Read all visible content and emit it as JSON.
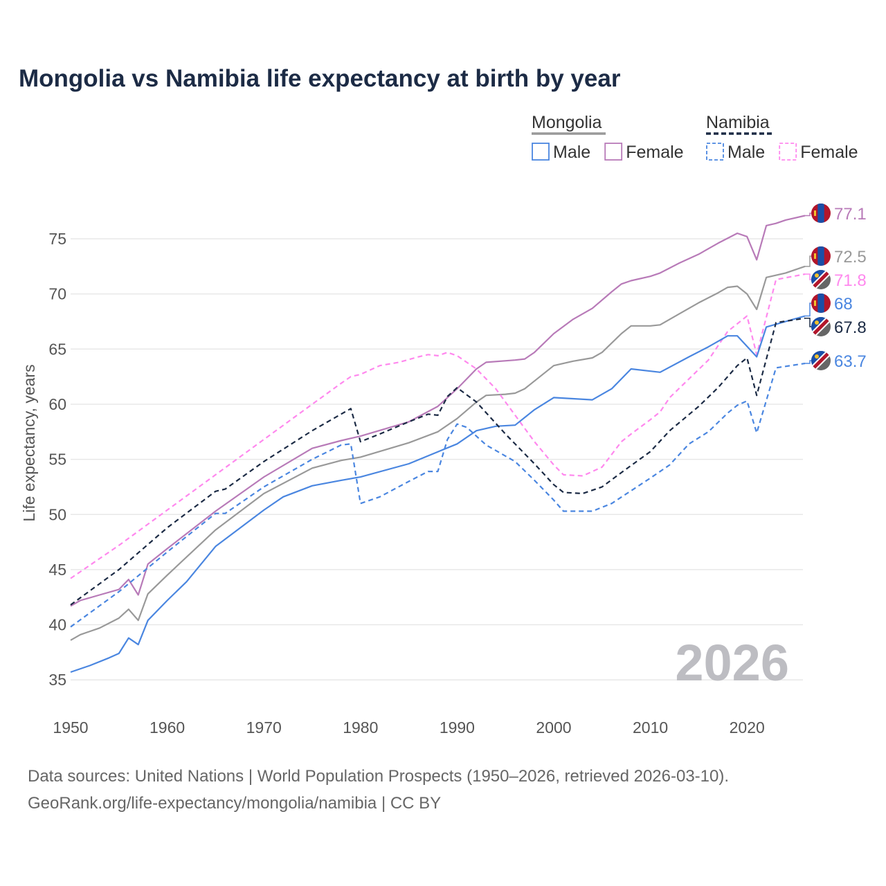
{
  "chart_data": {
    "type": "line",
    "title": "Mongolia vs Namibia life expectancy at birth by year",
    "xlabel": "",
    "ylabel": "Life expectancy, years",
    "xlim": [
      1950,
      2026
    ],
    "ylim": [
      33,
      79
    ],
    "x_ticks": [
      1950,
      1960,
      1970,
      1980,
      1990,
      2000,
      2010,
      2020
    ],
    "y_ticks": [
      35,
      40,
      45,
      50,
      55,
      60,
      65,
      70,
      75
    ],
    "grid": true,
    "watermark_year": "2026",
    "legend": {
      "placement": "top-right",
      "groups": [
        {
          "name": "Mongolia",
          "color": "#999999",
          "style": "solid",
          "items": [
            {
              "label": "Male",
              "color": "#4a86e0"
            },
            {
              "label": "Female",
              "color": "#b87ab8"
            }
          ]
        },
        {
          "name": "Namibia",
          "color": "#1c2b45",
          "style": "dashed",
          "items": [
            {
              "label": "Male",
              "color": "#4a86e0"
            },
            {
              "label": "Female",
              "color": "#ff88ee"
            }
          ]
        }
      ]
    },
    "series": [
      {
        "name": "Mongolia Female",
        "country": "mongolia",
        "color": "#b87ab8",
        "dashed": false,
        "end_label": "77.1",
        "x": [
          1950,
          1951,
          1953,
          1955,
          1956,
          1957,
          1958,
          1960,
          1965,
          1970,
          1975,
          1978,
          1980,
          1985,
          1988,
          1990,
          1992,
          1993,
          1996,
          1997,
          1998,
          2000,
          2002,
          2004,
          2006,
          2007,
          2008,
          2010,
          2011,
          2013,
          2015,
          2017,
          2019,
          2020,
          2021,
          2022,
          2023,
          2024,
          2026
        ],
        "y": [
          41.7,
          42.2,
          42.7,
          43.2,
          44.1,
          42.7,
          45.5,
          46.9,
          50.3,
          53.4,
          56.0,
          56.7,
          57.1,
          58.4,
          59.8,
          61.4,
          63.2,
          63.8,
          64.0,
          64.1,
          64.7,
          66.4,
          67.7,
          68.7,
          70.2,
          70.9,
          71.2,
          71.6,
          71.9,
          72.8,
          73.6,
          74.6,
          75.5,
          75.2,
          73.1,
          76.2,
          76.4,
          76.7,
          77.1
        ]
      },
      {
        "name": "Mongolia Total",
        "country": "mongolia",
        "color": "#999999",
        "dashed": false,
        "end_label": "72.5",
        "x": [
          1950,
          1951,
          1953,
          1955,
          1956,
          1957,
          1958,
          1960,
          1965,
          1970,
          1975,
          1978,
          1980,
          1985,
          1988,
          1990,
          1992,
          1993,
          1995,
          1996,
          1997,
          2000,
          2002,
          2004,
          2005,
          2007,
          2008,
          2010,
          2011,
          2013,
          2015,
          2017,
          2018,
          2019,
          2020,
          2021,
          2022,
          2024,
          2026
        ],
        "y": [
          38.6,
          39.1,
          39.7,
          40.6,
          41.4,
          40.4,
          42.8,
          44.5,
          48.6,
          51.9,
          54.2,
          54.9,
          55.2,
          56.5,
          57.5,
          58.7,
          60.2,
          60.8,
          60.9,
          61.0,
          61.4,
          63.5,
          63.9,
          64.2,
          64.7,
          66.4,
          67.1,
          67.1,
          67.2,
          68.2,
          69.2,
          70.1,
          70.6,
          70.7,
          70.0,
          68.6,
          71.5,
          71.9,
          72.5
        ]
      },
      {
        "name": "Namibia Female",
        "country": "namibia",
        "color": "#ff88ee",
        "dashed": true,
        "end_label": "71.8",
        "x": [
          1950,
          1955,
          1960,
          1965,
          1970,
          1975,
          1978,
          1979,
          1980,
          1982,
          1984,
          1986,
          1987,
          1988,
          1989,
          1990,
          1992,
          1994,
          1996,
          1998,
          2000,
          2001,
          2003,
          2005,
          2007,
          2008,
          2010,
          2011,
          2012,
          2014,
          2016,
          2018,
          2020,
          2021,
          2023,
          2026
        ],
        "y": [
          44.2,
          47.2,
          50.4,
          53.6,
          56.8,
          60.0,
          61.9,
          62.5,
          62.7,
          63.5,
          63.8,
          64.3,
          64.5,
          64.4,
          64.7,
          64.4,
          63.2,
          61.4,
          59.0,
          56.6,
          54.5,
          53.6,
          53.5,
          54.3,
          56.6,
          57.3,
          58.6,
          59.3,
          60.6,
          62.3,
          64.0,
          66.6,
          68.0,
          64.5,
          71.3,
          71.8
        ]
      },
      {
        "name": "Mongolia Male",
        "country": "mongolia",
        "color": "#4a86e0",
        "dashed": false,
        "end_label": "68",
        "x": [
          1950,
          1952,
          1954,
          1955,
          1956,
          1957,
          1958,
          1960,
          1962,
          1965,
          1970,
          1972,
          1975,
          1978,
          1980,
          1985,
          1990,
          1992,
          1994,
          1996,
          1998,
          2000,
          2004,
          2006,
          2008,
          2010,
          2011,
          2014,
          2016,
          2018,
          2019,
          2021,
          2022,
          2026
        ],
        "y": [
          35.7,
          36.3,
          37.0,
          37.4,
          38.8,
          38.2,
          40.4,
          42.2,
          43.9,
          47.1,
          50.4,
          51.6,
          52.6,
          53.1,
          53.4,
          54.6,
          56.4,
          57.6,
          58.0,
          58.1,
          59.5,
          60.6,
          60.4,
          61.4,
          63.2,
          63.0,
          62.9,
          64.3,
          65.2,
          66.2,
          66.2,
          64.3,
          67.0,
          68.0
        ]
      },
      {
        "name": "Namibia Total",
        "country": "namibia",
        "color": "#1c2b45",
        "dashed": true,
        "end_label": "67.8",
        "x": [
          1950,
          1955,
          1960,
          1965,
          1966,
          1970,
          1975,
          1979,
          1980,
          1982,
          1985,
          1987,
          1988,
          1989,
          1990,
          1992,
          1995,
          1998,
          2000,
          2001,
          2003,
          2005,
          2007,
          2010,
          2012,
          2015,
          2017,
          2019,
          2020,
          2021,
          2023,
          2026
        ],
        "y": [
          41.8,
          45.0,
          48.8,
          52.1,
          52.3,
          54.8,
          57.6,
          59.6,
          56.6,
          57.3,
          58.4,
          59.1,
          59.0,
          60.7,
          61.5,
          60.2,
          57.3,
          54.6,
          52.7,
          52.0,
          51.9,
          52.5,
          53.8,
          55.7,
          57.6,
          59.8,
          61.5,
          63.5,
          64.2,
          60.8,
          67.4,
          67.8
        ]
      },
      {
        "name": "Namibia Male",
        "country": "namibia",
        "color": "#4a86e0",
        "dashed": true,
        "end_label": "63.7",
        "x": [
          1950,
          1955,
          1960,
          1965,
          1966,
          1970,
          1975,
          1978,
          1979,
          1980,
          1982,
          1985,
          1987,
          1988,
          1989,
          1990,
          1991,
          1993,
          1996,
          1998,
          2000,
          2001,
          2004,
          2006,
          2010,
          2012,
          2014,
          2016,
          2018,
          2019,
          2020,
          2021,
          2023,
          2026
        ],
        "y": [
          39.8,
          43.0,
          46.6,
          50.1,
          50.1,
          52.5,
          55.0,
          56.3,
          56.4,
          51.0,
          51.6,
          53.0,
          53.9,
          53.9,
          56.8,
          58.2,
          57.9,
          56.3,
          54.8,
          53.1,
          51.3,
          50.3,
          50.3,
          51.0,
          53.3,
          54.5,
          56.4,
          57.5,
          59.2,
          59.9,
          60.3,
          57.4,
          63.3,
          63.7
        ]
      }
    ]
  },
  "footer": {
    "line1": "Data sources: United Nations | World Population Prospects (1950–2026, retrieved 2026-03-10).",
    "line2": "GeoRank.org/life-expectancy/mongolia/namibia | CC BY"
  }
}
